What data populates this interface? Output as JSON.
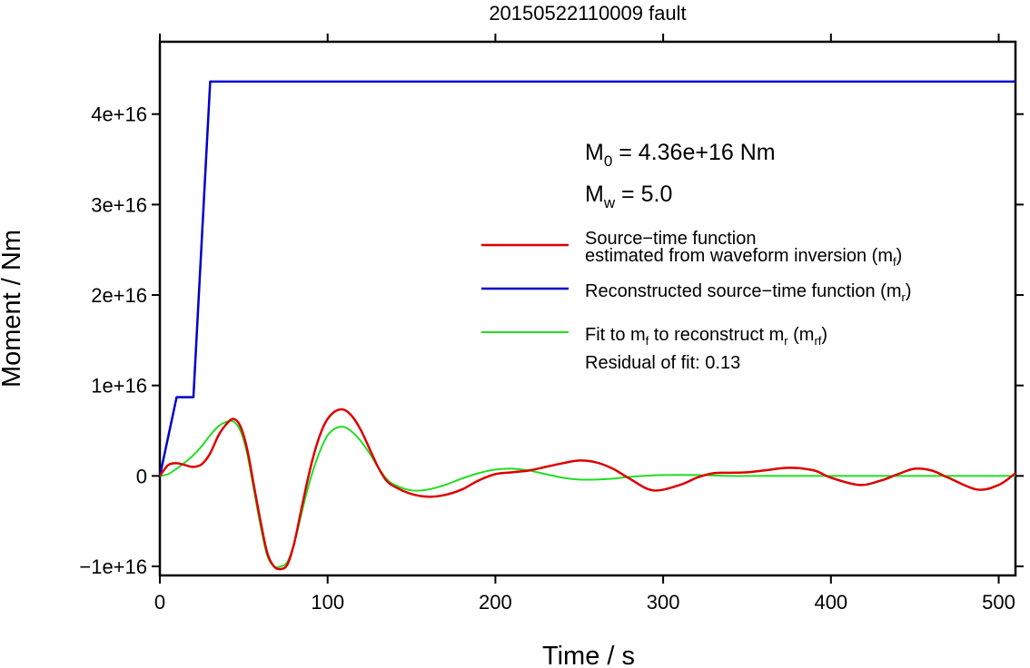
{
  "chart_data": {
    "type": "line",
    "title": "20150522110009 fault",
    "xlabel": "Time / s",
    "ylabel": "Moment / Nm",
    "xlim": [
      0,
      510
    ],
    "ylim": [
      -1.1e+16,
      4.8e+16
    ],
    "x_ticks": [
      0,
      100,
      200,
      300,
      400,
      500
    ],
    "x_tick_labels": [
      "0",
      "100",
      "200",
      "300",
      "400",
      "500"
    ],
    "y_ticks": [
      -1e+16,
      0,
      1e+16,
      2e+16,
      3e+16,
      4e+16
    ],
    "y_tick_labels": [
      "−1e+16",
      "0",
      "1e+16",
      "2e+16",
      "3e+16",
      "4e+16"
    ],
    "grid": false,
    "legend_position": "right",
    "annotations": {
      "m0_sym": "M",
      "m0_sub": "0",
      "m0_text": " = 4.36e+16 Nm",
      "mw_sym": "M",
      "mw_sub": "w",
      "mw_text": " = 5.0",
      "residual": "Residual of fit: 0.13"
    },
    "legend": [
      {
        "color": "#dd0000",
        "line1": "Source−time function",
        "line2": "estimated from waveform inversion (m",
        "sub": "f",
        "tail": ")"
      },
      {
        "color": "#0000cc",
        "line1": "Reconstructed source−time function (m",
        "sub": "r",
        "tail": ")"
      },
      {
        "color": "#22dd22",
        "line1": "Fit to m",
        "sub1": "f",
        "mid": " to reconstruct m",
        "sub2": "r",
        "mid2": " (m",
        "sub3": "rf",
        "tail": ")"
      }
    ],
    "series": [
      {
        "name": "Reconstructed source−time function (m_r)",
        "color": "#0000cc",
        "x": [
          0,
          10,
          20,
          30,
          510
        ],
        "y": [
          0,
          8700000000000000.0,
          8700000000000000.0,
          4.36e+16,
          4.36e+16
        ]
      },
      {
        "name": "Source−time function estimated from waveform inversion (m_f)",
        "color": "#dd0000",
        "x": [
          0,
          5,
          10,
          15,
          20,
          25,
          30,
          35,
          40,
          44,
          48,
          52,
          56,
          60,
          64,
          68,
          72,
          76,
          80,
          84,
          88,
          92,
          96,
          100,
          105,
          110,
          115,
          120,
          125,
          130,
          135,
          140,
          150,
          160,
          170,
          180,
          190,
          200,
          210,
          220,
          230,
          240,
          250,
          260,
          270,
          280,
          294,
          310,
          320,
          330,
          340,
          350,
          360,
          375,
          390,
          400,
          417,
          430,
          440,
          450,
          460,
          470,
          487,
          500,
          510
        ],
        "y": [
          0,
          1200000000000000.0,
          1400000000000000.0,
          1200000000000000.0,
          1000000000000000.0,
          1300000000000000.0,
          2500000000000000.0,
          4500000000000000.0,
          5800000000000000.0,
          6300000000000000.0,
          5500000000000000.0,
          3000000000000000.0,
          -1000000000000000.0,
          -5000000000000000.0,
          -8500000000000000.0,
          -1e+16,
          -1.03e+16,
          -9800000000000000.0,
          -7500000000000000.0,
          -4000000000000000.0,
          -500000000000000.0,
          2500000000000000.0,
          4800000000000000.0,
          6300000000000000.0,
          7200000000000000.0,
          7300000000000000.0,
          6500000000000000.0,
          5000000000000000.0,
          3000000000000000.0,
          1000000000000000.0,
          -500000000000000.0,
          -1200000000000000.0,
          -2000000000000000.0,
          -2300000000000000.0,
          -2100000000000000.0,
          -1500000000000000.0,
          -500000000000000.0,
          200000000000000.0,
          400000000000000.0,
          600000000000000.0,
          1000000000000000.0,
          1400000000000000.0,
          1700000000000000.0,
          1500000000000000.0,
          800000000000000.0,
          -300000000000000.0,
          -1600000000000000.0,
          -1000000000000000.0,
          -200000000000000.0,
          300000000000000.0,
          350000000000000.0,
          400000000000000.0,
          600000000000000.0,
          900000000000000.0,
          600000000000000.0,
          -200000000000000.0,
          -1000000000000000.0,
          -500000000000000.0,
          200000000000000.0,
          800000000000000.0,
          600000000000000.0,
          -200000000000000.0,
          -1500000000000000.0,
          -1000000000000000.0,
          300000000000000.0
        ]
      },
      {
        "name": "Fit to m_f to reconstruct m_r (m_rf)",
        "color": "#22dd22",
        "x": [
          0,
          5,
          10,
          15,
          20,
          25,
          30,
          35,
          40,
          44,
          48,
          52,
          56,
          60,
          64,
          68,
          72,
          76,
          80,
          84,
          88,
          92,
          96,
          100,
          105,
          110,
          115,
          120,
          125,
          130,
          135,
          140,
          150,
          160,
          170,
          180,
          190,
          200,
          210,
          220,
          230,
          240,
          250,
          260,
          270,
          280,
          300,
          320,
          340,
          360,
          400,
          450,
          510
        ],
        "y": [
          0,
          200000000000000.0,
          800000000000000.0,
          1500000000000000.0,
          2300000000000000.0,
          3300000000000000.0,
          4500000000000000.0,
          5500000000000000.0,
          6000000000000000.0,
          6000000000000000.0,
          5000000000000000.0,
          2500000000000000.0,
          -1500000000000000.0,
          -5500000000000000.0,
          -8800000000000000.0,
          -1e+16,
          -1e+16,
          -9500000000000000.0,
          -7500000000000000.0,
          -4500000000000000.0,
          -1500000000000000.0,
          1000000000000000.0,
          3000000000000000.0,
          4500000000000000.0,
          5300000000000000.0,
          5400000000000000.0,
          4800000000000000.0,
          3800000000000000.0,
          2500000000000000.0,
          1000000000000000.0,
          -300000000000000.0,
          -1000000000000000.0,
          -1600000000000000.0,
          -1500000000000000.0,
          -1000000000000000.0,
          -300000000000000.0,
          300000000000000.0,
          700000000000000.0,
          800000000000000.0,
          600000000000000.0,
          200000000000000.0,
          -200000000000000.0,
          -400000000000000.0,
          -400000000000000.0,
          -300000000000000.0,
          -100000000000000.0,
          100000000000000.0,
          100000000000000.0,
          0.0,
          0.0,
          0.0,
          0.0,
          0.0
        ]
      }
    ]
  }
}
